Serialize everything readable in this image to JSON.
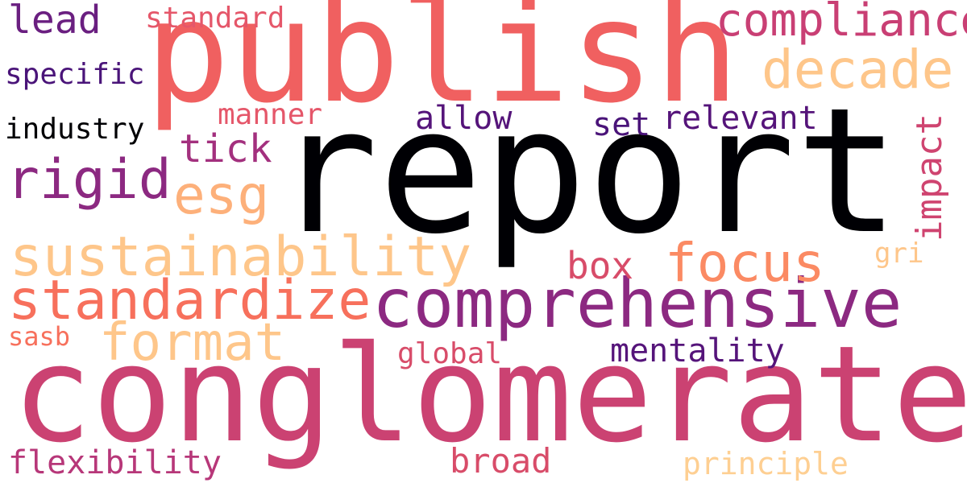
{
  "palette": {
    "black": "#000004",
    "deep_purple": "#3b0f70",
    "purple": "#8c2981",
    "magenta": "#b73779",
    "rose": "#de4968",
    "coral": "#f7705c",
    "orange": "#fe9f6d",
    "peach": "#fecf92",
    "background": "#ffffff"
  },
  "words": [
    {
      "text": "report",
      "color": "#000004"
    },
    {
      "text": "publish",
      "color": "#f06060"
    },
    {
      "text": "conglomerate",
      "color": "#cb4272"
    },
    {
      "text": "comprehensive",
      "color": "#8c2981"
    },
    {
      "text": "sustainability",
      "color": "#fec68a"
    },
    {
      "text": "standardize",
      "color": "#f7705c"
    },
    {
      "text": "compliance",
      "color": "#c93f74"
    },
    {
      "text": "decade",
      "color": "#fec68a"
    },
    {
      "text": "focus",
      "color": "#fb8a63"
    },
    {
      "text": "format",
      "color": "#fec68a"
    },
    {
      "text": "rigid",
      "color": "#8c2981"
    },
    {
      "text": "esg",
      "color": "#fdb07a"
    },
    {
      "text": "tick",
      "color": "#a3307e"
    },
    {
      "text": "impact",
      "color": "#cf4470"
    },
    {
      "text": "lead",
      "color": "#6a1f80"
    },
    {
      "text": "standard",
      "color": "#e5576a"
    },
    {
      "text": "specific",
      "color": "#4a1479"
    },
    {
      "text": "industry",
      "color": "#000004"
    },
    {
      "text": "manner",
      "color": "#e5576a"
    },
    {
      "text": "allow",
      "color": "#55147a"
    },
    {
      "text": "set",
      "color": "#4a1479"
    },
    {
      "text": "relevant",
      "color": "#55147a"
    },
    {
      "text": "box",
      "color": "#d84c69"
    },
    {
      "text": "gri",
      "color": "#fec68a"
    },
    {
      "text": "mentality",
      "color": "#55147a"
    },
    {
      "text": "global",
      "color": "#d84c69"
    },
    {
      "text": "sasb",
      "color": "#f7705c"
    },
    {
      "text": "flexibility",
      "color": "#b73779"
    },
    {
      "text": "broad",
      "color": "#d84c69"
    },
    {
      "text": "principle",
      "color": "#fecf92"
    }
  ]
}
